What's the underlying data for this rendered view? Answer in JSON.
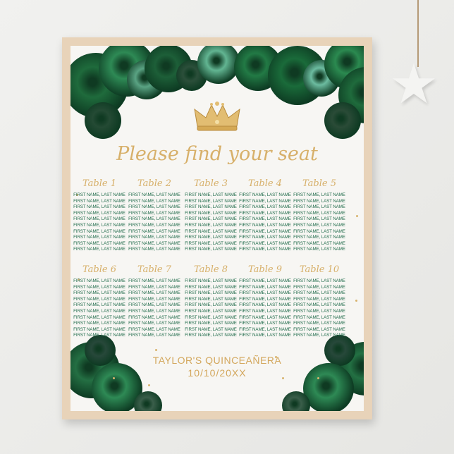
{
  "poster": {
    "heading": "Please find your seat",
    "event_name": "TAYLOR'S QUINCEAÑERA",
    "event_date": "10/10/20XX",
    "colors": {
      "gold": "#d7b06a",
      "green_text": "#1f6b4a",
      "rose_green": "#2f7a4c",
      "frame": "#e8d3b9"
    },
    "tables": [
      {
        "name": "Table 1",
        "guests": [
          "FIRST NAME, LAST NAME",
          "FIRST NAME, LAST NAME",
          "FIRST NAME, LAST NAME",
          "FIRST NAME, LAST NAME",
          "FIRST NAME, LAST NAME",
          "FIRST NAME, LAST NAME",
          "FIRST NAME, LAST NAME",
          "FIRST NAME, LAST NAME",
          "FIRST NAME, LAST NAME",
          "FIRST NAME, LAST NAME"
        ]
      },
      {
        "name": "Table 2",
        "guests": [
          "FIRST NAME, LAST NAME",
          "FIRST NAME, LAST NAME",
          "FIRST NAME, LAST NAME",
          "FIRST NAME, LAST NAME",
          "FIRST NAME, LAST NAME",
          "FIRST NAME, LAST NAME",
          "FIRST NAME, LAST NAME",
          "FIRST NAME, LAST NAME",
          "FIRST NAME, LAST NAME",
          "FIRST NAME, LAST NAME"
        ]
      },
      {
        "name": "Table 3",
        "guests": [
          "FIRST NAME, LAST NAME",
          "FIRST NAME, LAST NAME",
          "FIRST NAME, LAST NAME",
          "FIRST NAME, LAST NAME",
          "FIRST NAME, LAST NAME",
          "FIRST NAME, LAST NAME",
          "FIRST NAME, LAST NAME",
          "FIRST NAME, LAST NAME",
          "FIRST NAME, LAST NAME",
          "FIRST NAME, LAST NAME"
        ]
      },
      {
        "name": "Table 4",
        "guests": [
          "FIRST NAME, LAST NAME",
          "FIRST NAME, LAST NAME",
          "FIRST NAME, LAST NAME",
          "FIRST NAME, LAST NAME",
          "FIRST NAME, LAST NAME",
          "FIRST NAME, LAST NAME",
          "FIRST NAME, LAST NAME",
          "FIRST NAME, LAST NAME",
          "FIRST NAME, LAST NAME",
          "FIRST NAME, LAST NAME"
        ]
      },
      {
        "name": "Table 5",
        "guests": [
          "FIRST NAME, LAST NAME",
          "FIRST NAME, LAST NAME",
          "FIRST NAME, LAST NAME",
          "FIRST NAME, LAST NAME",
          "FIRST NAME, LAST NAME",
          "FIRST NAME, LAST NAME",
          "FIRST NAME, LAST NAME",
          "FIRST NAME, LAST NAME",
          "FIRST NAME, LAST NAME",
          "FIRST NAME, LAST NAME"
        ]
      },
      {
        "name": "Table 6",
        "guests": [
          "FIRST NAME, LAST NAME",
          "FIRST NAME, LAST NAME",
          "FIRST NAME, LAST NAME",
          "FIRST NAME, LAST NAME",
          "FIRST NAME, LAST NAME",
          "FIRST NAME, LAST NAME",
          "FIRST NAME, LAST NAME",
          "FIRST NAME, LAST NAME",
          "FIRST NAME, LAST NAME",
          "FIRST NAME, LAST NAME"
        ]
      },
      {
        "name": "Table 7",
        "guests": [
          "FIRST NAME, LAST NAME",
          "FIRST NAME, LAST NAME",
          "FIRST NAME, LAST NAME",
          "FIRST NAME, LAST NAME",
          "FIRST NAME, LAST NAME",
          "FIRST NAME, LAST NAME",
          "FIRST NAME, LAST NAME",
          "FIRST NAME, LAST NAME",
          "FIRST NAME, LAST NAME",
          "FIRST NAME, LAST NAME"
        ]
      },
      {
        "name": "Table 8",
        "guests": [
          "FIRST NAME, LAST NAME",
          "FIRST NAME, LAST NAME",
          "FIRST NAME, LAST NAME",
          "FIRST NAME, LAST NAME",
          "FIRST NAME, LAST NAME",
          "FIRST NAME, LAST NAME",
          "FIRST NAME, LAST NAME",
          "FIRST NAME, LAST NAME",
          "FIRST NAME, LAST NAME",
          "FIRST NAME, LAST NAME"
        ]
      },
      {
        "name": "Table 9",
        "guests": [
          "FIRST NAME, LAST NAME",
          "FIRST NAME, LAST NAME",
          "FIRST NAME, LAST NAME",
          "FIRST NAME, LAST NAME",
          "FIRST NAME, LAST NAME",
          "FIRST NAME, LAST NAME",
          "FIRST NAME, LAST NAME",
          "FIRST NAME, LAST NAME",
          "FIRST NAME, LAST NAME",
          "FIRST NAME, LAST NAME"
        ]
      },
      {
        "name": "Table 10",
        "guests": [
          "FIRST NAME, LAST NAME",
          "FIRST NAME, LAST NAME",
          "FIRST NAME, LAST NAME",
          "FIRST NAME, LAST NAME",
          "FIRST NAME, LAST NAME",
          "FIRST NAME, LAST NAME",
          "FIRST NAME, LAST NAME",
          "FIRST NAME, LAST NAME",
          "FIRST NAME, LAST NAME",
          "FIRST NAME, LAST NAME"
        ]
      }
    ]
  }
}
